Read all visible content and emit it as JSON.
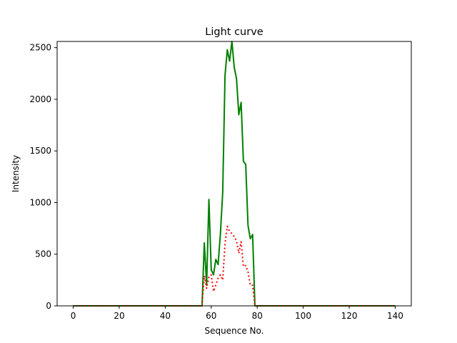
{
  "chart_data": {
    "type": "line",
    "title": "Light curve",
    "xlabel": "Sequence No.",
    "ylabel": "Intensity",
    "xlim": [
      -7,
      147
    ],
    "ylim": [
      0,
      2560
    ],
    "xticks": [
      0,
      20,
      40,
      60,
      80,
      100,
      120,
      140
    ],
    "yticks": [
      0,
      500,
      1000,
      1500,
      2000,
      2500
    ],
    "grid": false,
    "legend": "none",
    "series": [
      {
        "color": "#008000",
        "linestyle": "solid",
        "points": [
          [
            0,
            0
          ],
          [
            56,
            0
          ],
          [
            57,
            610
          ],
          [
            58,
            200
          ],
          [
            59,
            1030
          ],
          [
            60,
            350
          ],
          [
            61,
            300
          ],
          [
            62,
            450
          ],
          [
            63,
            400
          ],
          [
            64,
            700
          ],
          [
            65,
            1100
          ],
          [
            66,
            2230
          ],
          [
            67,
            2480
          ],
          [
            68,
            2370
          ],
          [
            69,
            2560
          ],
          [
            70,
            2310
          ],
          [
            71,
            2200
          ],
          [
            72,
            1850
          ],
          [
            73,
            1970
          ],
          [
            74,
            1400
          ],
          [
            75,
            1370
          ],
          [
            76,
            780
          ],
          [
            77,
            650
          ],
          [
            78,
            690
          ],
          [
            79,
            0
          ],
          [
            140,
            0
          ]
        ]
      },
      {
        "color": "#ff0000",
        "linestyle": "dotted",
        "points": [
          [
            0,
            0
          ],
          [
            56,
            0
          ],
          [
            57,
            290
          ],
          [
            58,
            170
          ],
          [
            59,
            280
          ],
          [
            60,
            300
          ],
          [
            61,
            140
          ],
          [
            62,
            200
          ],
          [
            63,
            270
          ],
          [
            64,
            300
          ],
          [
            65,
            250
          ],
          [
            66,
            600
          ],
          [
            67,
            770
          ],
          [
            68,
            720
          ],
          [
            69,
            700
          ],
          [
            70,
            670
          ],
          [
            71,
            630
          ],
          [
            72,
            510
          ],
          [
            73,
            620
          ],
          [
            74,
            380
          ],
          [
            75,
            390
          ],
          [
            76,
            330
          ],
          [
            77,
            200
          ],
          [
            78,
            200
          ],
          [
            79,
            0
          ],
          [
            140,
            0
          ]
        ]
      }
    ]
  }
}
